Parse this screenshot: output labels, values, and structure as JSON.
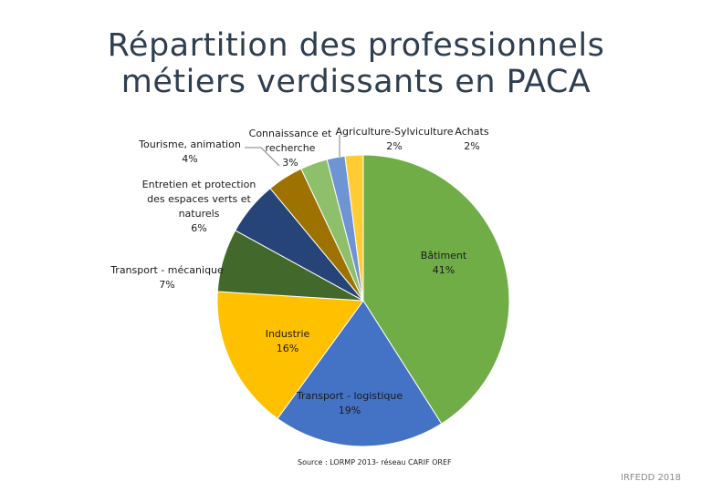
{
  "title_line1": "Répartition des professionnels",
  "title_line2": "métiers verdissants en PACA",
  "source": "Source : LORMP 2013- réseau CARIF OREF",
  "footer": "IRFEDD 2018",
  "chart_data": {
    "type": "pie",
    "title": "Répartition des professionnels métiers verdissants en PACA",
    "start": "12 o'clock, clockwise",
    "slices": [
      {
        "lines": [
          "Bâtiment",
          "41%"
        ],
        "name": "Bâtiment",
        "value": 41,
        "color": "#70ad47"
      },
      {
        "lines": [
          "Transport - logistique",
          "19%"
        ],
        "name": "Transport - logistique",
        "value": 19,
        "color": "#4472c4"
      },
      {
        "lines": [
          "Industrie",
          "16%"
        ],
        "name": "Industrie",
        "value": 16,
        "color": "#ffc000"
      },
      {
        "lines": [
          "Transport - mécanique",
          "7%"
        ],
        "name": "Transport - mécanique",
        "value": 7,
        "color": "#43682b"
      },
      {
        "lines": [
          "Entretien et protection",
          "des espaces verts et",
          "naturels",
          "6%"
        ],
        "name": "Entretien et protection des espaces verts et naturels",
        "value": 6,
        "color": "#264478"
      },
      {
        "lines": [
          "Tourisme, animation",
          "4%"
        ],
        "name": "Tourisme, animation",
        "value": 4,
        "color": "#9e7200"
      },
      {
        "lines": [
          "Connaissance et",
          "recherche",
          "3%"
        ],
        "name": "Connaissance et recherche",
        "value": 3,
        "color": "#8ec06b"
      },
      {
        "lines": [
          "Agriculture-Sylviculture",
          "2%"
        ],
        "name": "Agriculture-Sylviculture",
        "value": 2,
        "color": "#6f94d4"
      },
      {
        "lines": [
          "Achats",
          "2%"
        ],
        "name": "Achats",
        "value": 2,
        "color": "#ffcd33"
      }
    ]
  }
}
